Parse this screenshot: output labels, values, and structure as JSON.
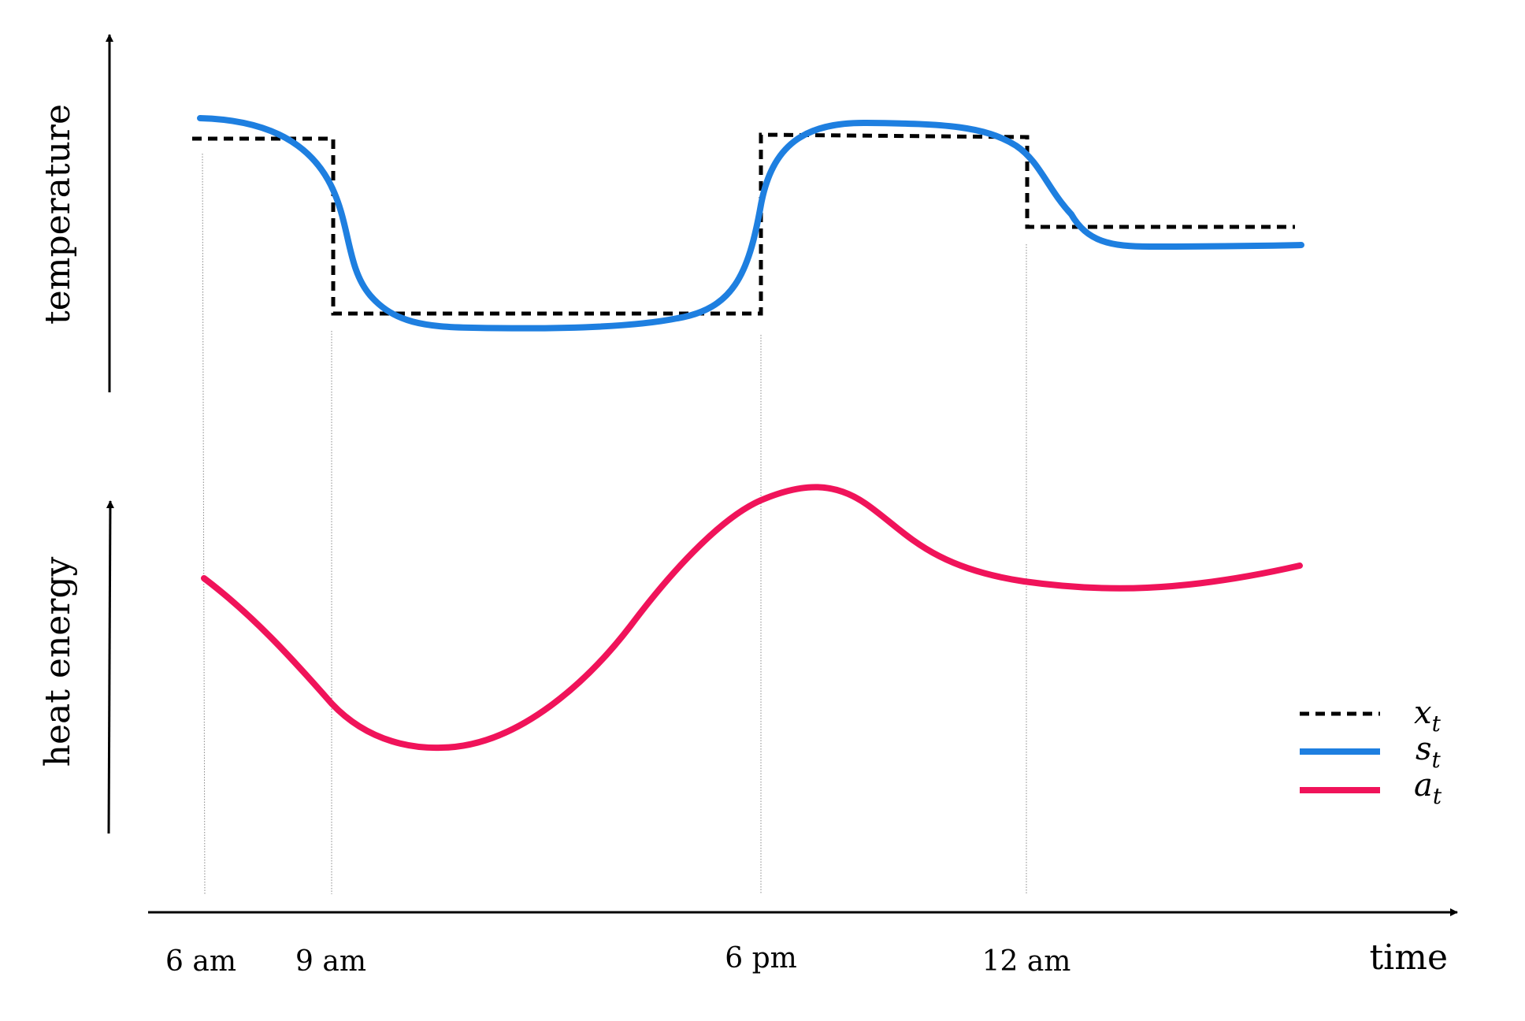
{
  "axes": {
    "upper_y_label": "temperature",
    "lower_y_label": "heat energy",
    "x_label": "time",
    "x_ticks": [
      "6 am",
      "9 am",
      "6 pm",
      "12 am"
    ]
  },
  "legend": [
    {
      "symbol": "x",
      "subscript": "t",
      "style": "dashed",
      "color": "#000000"
    },
    {
      "symbol": "s",
      "subscript": "t",
      "style": "solid",
      "color": "#1e7fe0"
    },
    {
      "symbol": "a",
      "subscript": "t",
      "style": "solid",
      "color": "#f0135a"
    }
  ],
  "colors": {
    "axis": "#000000",
    "setpoint": "#000000",
    "state": "#1e7fe0",
    "action": "#f0135a",
    "guide": "#888888"
  }
}
